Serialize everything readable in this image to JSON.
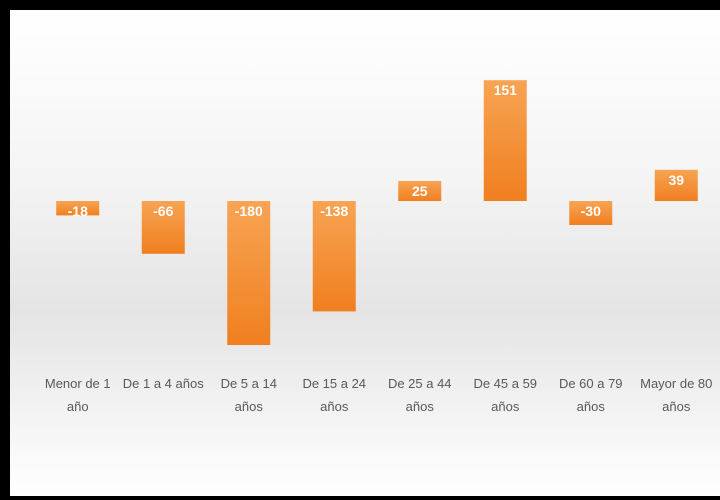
{
  "chart_data": {
    "type": "bar",
    "categories": [
      [
        "Menor de 1",
        "año"
      ],
      [
        "De 1 a 4 años"
      ],
      [
        "De 5 a 14",
        "años"
      ],
      [
        "De 15 a 24",
        "años"
      ],
      [
        "De 25 a 44",
        "años"
      ],
      [
        "De 45 a 59",
        "años"
      ],
      [
        "De 60 a 79",
        "años"
      ],
      [
        "Mayor de 80",
        "años"
      ]
    ],
    "values": [
      -18,
      -66,
      -180,
      -138,
      25,
      151,
      -30,
      39
    ],
    "data_labels": [
      "-18",
      "-66",
      "-180",
      "-138",
      "25",
      "151",
      "-30",
      "39"
    ],
    "bar_color": "#f07f1f",
    "bar_color_light": "#f7a454",
    "label_color": "#ffffff",
    "category_color": "#595959",
    "grid": false,
    "legend": "none"
  }
}
